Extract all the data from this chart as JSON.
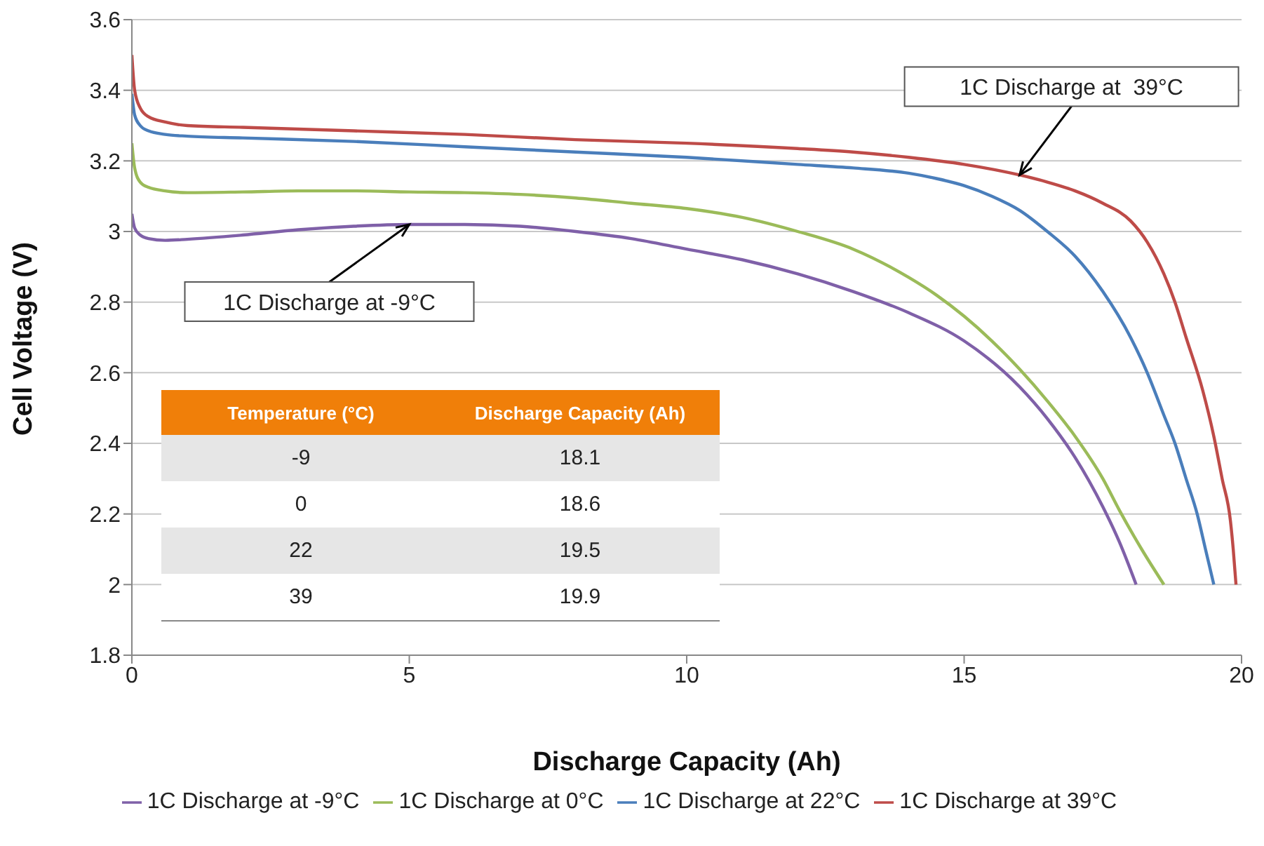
{
  "chart_data": {
    "type": "line",
    "xlabel": "Discharge Capacity (Ah)",
    "ylabel": "Cell Voltage (V)",
    "xlim": [
      0,
      20
    ],
    "xticks": [
      0,
      5,
      10,
      15,
      20
    ],
    "ylim": [
      1.8,
      3.6
    ],
    "yticks": [
      1.8,
      2,
      2.2,
      2.4,
      2.6,
      2.8,
      3,
      3.2,
      3.4,
      3.6
    ],
    "grid": "y",
    "legend": "bottom",
    "marker": "none",
    "line_style": "solid",
    "series": [
      {
        "name": "1C Discharge at -9°C",
        "color": "#7f60a8",
        "x": [
          0,
          0.05,
          0.15,
          0.3,
          0.6,
          1,
          2,
          3,
          4,
          5,
          6,
          7,
          8,
          9,
          10,
          11,
          12,
          13,
          14,
          15,
          16,
          16.5,
          17,
          17.5,
          17.8,
          18.1
        ],
        "values": [
          3.05,
          3.01,
          2.99,
          2.98,
          2.975,
          2.978,
          2.99,
          3.005,
          3.015,
          3.02,
          3.02,
          3.015,
          3.0,
          2.98,
          2.95,
          2.92,
          2.88,
          2.83,
          2.77,
          2.69,
          2.56,
          2.47,
          2.36,
          2.22,
          2.12,
          2.0
        ]
      },
      {
        "name": "1C Discharge at 0°C",
        "color": "#9bbb59",
        "x": [
          0,
          0.05,
          0.15,
          0.3,
          0.6,
          1,
          2,
          3,
          4,
          5,
          6,
          7,
          8,
          9,
          10,
          11,
          12,
          13,
          14,
          14.5,
          15,
          15.5,
          16,
          16.5,
          17,
          17.5,
          17.8,
          18.2,
          18.6
        ],
        "values": [
          3.25,
          3.18,
          3.14,
          3.125,
          3.115,
          3.11,
          3.112,
          3.115,
          3.115,
          3.112,
          3.11,
          3.105,
          3.095,
          3.08,
          3.065,
          3.04,
          3.0,
          2.95,
          2.87,
          2.82,
          2.76,
          2.69,
          2.61,
          2.52,
          2.42,
          2.3,
          2.21,
          2.1,
          2.0
        ]
      },
      {
        "name": "1C Discharge at 22°C",
        "color": "#4a7ebb",
        "x": [
          0,
          0.05,
          0.15,
          0.3,
          0.6,
          1,
          2,
          4,
          6,
          8,
          10,
          12,
          13,
          14,
          14.5,
          15,
          15.5,
          16,
          16.5,
          17,
          17.5,
          18,
          18.3,
          18.6,
          18.8,
          19,
          19.2,
          19.35,
          19.5
        ],
        "values": [
          3.39,
          3.33,
          3.3,
          3.285,
          3.275,
          3.27,
          3.265,
          3.255,
          3.24,
          3.225,
          3.21,
          3.19,
          3.18,
          3.165,
          3.15,
          3.13,
          3.1,
          3.06,
          3.0,
          2.93,
          2.83,
          2.7,
          2.6,
          2.48,
          2.4,
          2.3,
          2.2,
          2.1,
          2.0
        ]
      },
      {
        "name": "1C Discharge at 39°C",
        "color": "#be4b48",
        "x": [
          0,
          0.05,
          0.15,
          0.3,
          0.6,
          1,
          2,
          4,
          6,
          8,
          10,
          12,
          13,
          14,
          15,
          16,
          16.5,
          17,
          17.5,
          18,
          18.3,
          18.6,
          18.8,
          19,
          19.3,
          19.5,
          19.65,
          19.8,
          19.85,
          19.9
        ],
        "values": [
          3.5,
          3.4,
          3.35,
          3.325,
          3.31,
          3.3,
          3.295,
          3.285,
          3.275,
          3.26,
          3.25,
          3.235,
          3.225,
          3.21,
          3.19,
          3.16,
          3.14,
          3.115,
          3.08,
          3.03,
          2.97,
          2.88,
          2.8,
          2.7,
          2.55,
          2.42,
          2.3,
          2.18,
          2.1,
          2.0
        ]
      }
    ],
    "annotations": [
      {
        "text": "1C Discharge at -9°C",
        "x": 5,
        "y": 3.02
      },
      {
        "text": "1C Discharge at  39°C",
        "x": 16,
        "y": 3.16
      },
      "Temperature (°C)",
      "Discharge Capacity (Ah)",
      "-9",
      "18.1",
      "0",
      "18.6",
      "22",
      "19.5",
      "39",
      "19.9"
    ]
  }
}
